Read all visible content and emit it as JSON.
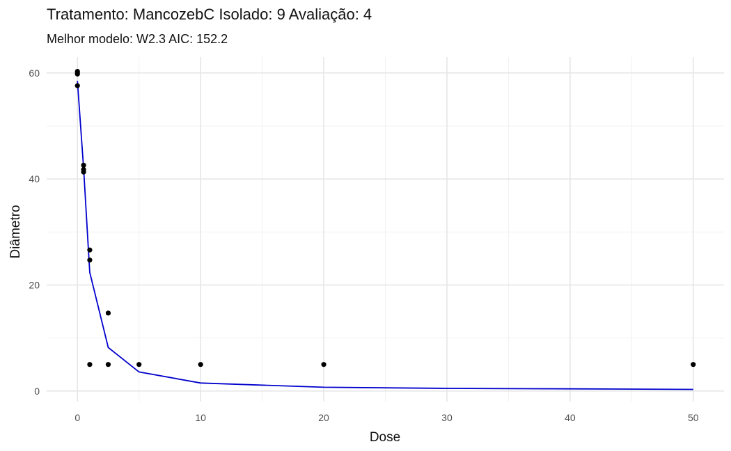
{
  "chart_data": {
    "type": "scatter",
    "title": "Tratamento: MancozebC Isolado: 9 Avaliação: 4",
    "subtitle": "Melhor modelo: W2.3 AIC: 152.2",
    "xlabel": "Dose",
    "ylabel": "Diâmetro",
    "xlim": [
      -2.5,
      52.5
    ],
    "ylim": [
      -2,
      63
    ],
    "grid": true,
    "x_ticks": [
      0,
      10,
      20,
      30,
      40,
      50
    ],
    "x_tick_labels": [
      "0",
      "10",
      "20",
      "30",
      "40",
      "50"
    ],
    "y_ticks": [
      0,
      20,
      40,
      60
    ],
    "y_tick_labels": [
      "0",
      "20",
      "40",
      "60"
    ],
    "points": {
      "x": [
        0,
        0,
        0,
        0,
        0.5,
        0.5,
        0.5,
        1,
        1,
        1,
        2.5,
        2.5,
        5,
        10,
        20,
        50
      ],
      "y": [
        60.3,
        60.0,
        59.8,
        57.6,
        42.6,
        41.8,
        41.3,
        26.6,
        24.7,
        5.0,
        14.7,
        5.0,
        5.0,
        5.0,
        5.0,
        5.0
      ],
      "color": "#000000"
    },
    "series": [
      {
        "x": [
          0,
          0.5,
          1,
          2.5,
          5,
          10,
          20,
          30,
          40,
          50
        ],
        "y": [
          58.5,
          42.0,
          22.4,
          8.2,
          3.6,
          1.5,
          0.7,
          0.5,
          0.4,
          0.3
        ],
        "color": "#0000CC"
      }
    ]
  }
}
